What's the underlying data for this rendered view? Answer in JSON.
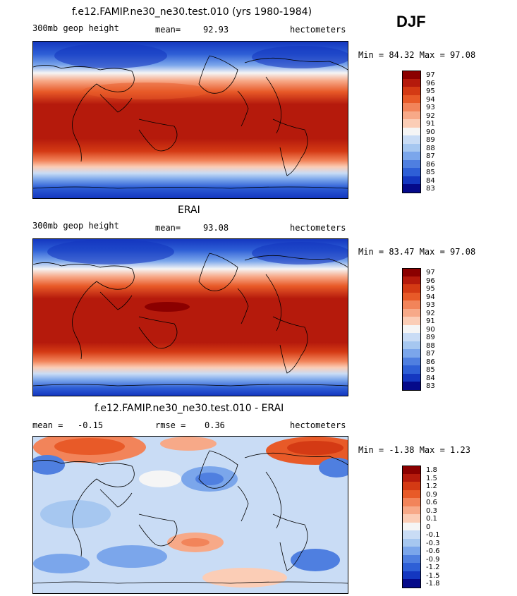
{
  "season": "DJF",
  "chart_data": [
    {
      "type": "heatmap",
      "title": "f.e12.FAMIP.ne30_ne30.test.010 (yrs 1980-1984)",
      "field": "300mb geop height",
      "stat_label": "mean=",
      "stat_value": "92.93",
      "units": "hectometers",
      "range_label": "Min =  84.32 Max =  97.08",
      "min": 84.32,
      "max": 97.08,
      "colorbar": [
        "97",
        "96",
        "95",
        "94",
        "93",
        "92",
        "91",
        "90",
        "89",
        "88",
        "87",
        "86",
        "85",
        "84",
        "83"
      ],
      "colors": [
        "#8b0000",
        "#b51a0c",
        "#d43a14",
        "#e85a28",
        "#f2845a",
        "#f7a988",
        "#fbcdb6",
        "#f5f5f5",
        "#c9dcf5",
        "#a6c7f0",
        "#7ba6eb",
        "#4f7fe0",
        "#2e5fd6",
        "#1437c0",
        "#050a8a"
      ]
    },
    {
      "type": "heatmap",
      "title": "ERAI",
      "field": "300mb geop height",
      "stat_label": "mean=",
      "stat_value": "93.08",
      "units": "hectometers",
      "range_label": "Min =  83.47 Max =  97.08",
      "min": 83.47,
      "max": 97.08,
      "colorbar": [
        "97",
        "96",
        "95",
        "94",
        "93",
        "92",
        "91",
        "90",
        "89",
        "88",
        "87",
        "86",
        "85",
        "84",
        "83"
      ],
      "colors": [
        "#8b0000",
        "#b51a0c",
        "#d43a14",
        "#e85a28",
        "#f2845a",
        "#f7a988",
        "#fbcdb6",
        "#f5f5f5",
        "#c9dcf5",
        "#a6c7f0",
        "#7ba6eb",
        "#4f7fe0",
        "#2e5fd6",
        "#1437c0",
        "#050a8a"
      ]
    },
    {
      "type": "heatmap",
      "title": "f.e12.FAMIP.ne30_ne30.test.010 - ERAI",
      "mean_label": "mean =",
      "mean_value": "-0.15",
      "rmse_label": "rmse =",
      "rmse_value": "0.36",
      "units": "hectometers",
      "range_label": "Min =  -1.38 Max =   1.23",
      "min": -1.38,
      "max": 1.23,
      "colorbar": [
        "1.8",
        "1.5",
        "1.2",
        "0.9",
        "0.6",
        "0.3",
        "0.1",
        "0",
        "-0.1",
        "-0.3",
        "-0.6",
        "-0.9",
        "-1.2",
        "-1.5",
        "-1.8"
      ],
      "colors": [
        "#8b0000",
        "#b51a0c",
        "#d43a14",
        "#e85a28",
        "#f2845a",
        "#f7a988",
        "#fbcdb6",
        "#f5f5f5",
        "#c9dcf5",
        "#a6c7f0",
        "#7ba6eb",
        "#4f7fe0",
        "#2e5fd6",
        "#1437c0",
        "#050a8a"
      ]
    }
  ]
}
